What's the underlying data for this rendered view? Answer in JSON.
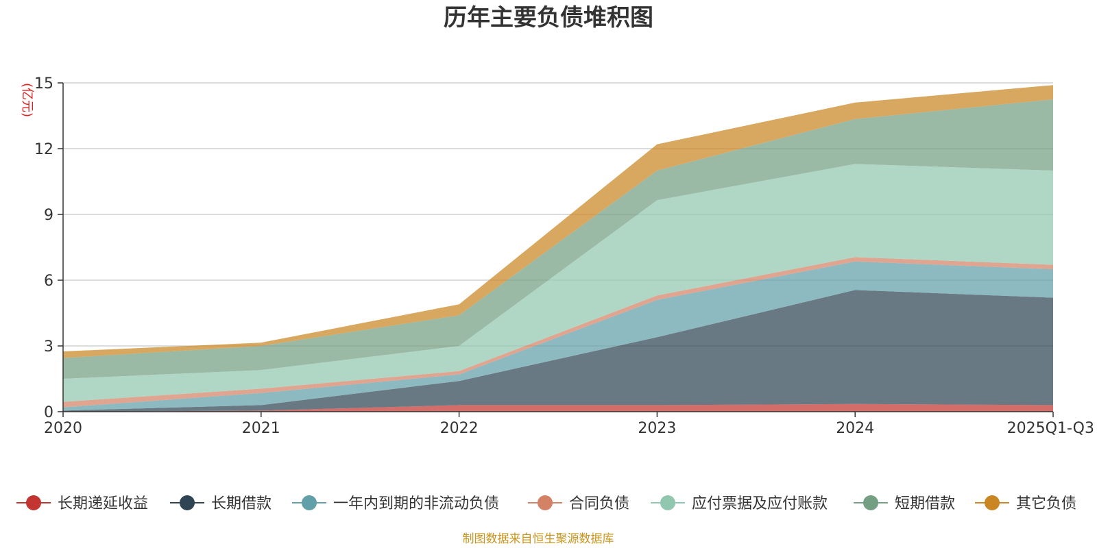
{
  "chart_data": {
    "type": "area",
    "stacked": true,
    "title": "历年主要负债堆积图",
    "unit_label": "(亿元)",
    "categories": [
      "2020",
      "2021",
      "2022",
      "2023",
      "2024",
      "2025Q1-Q3"
    ],
    "ylim": [
      0,
      15
    ],
    "y_ticks": [
      "0",
      "3",
      "6",
      "9",
      "12",
      "15"
    ],
    "grid": true,
    "legend_position": "bottom",
    "series": [
      {
        "name": "长期递延收益",
        "color": "#c23531",
        "values": [
          0.0,
          0.05,
          0.3,
          0.3,
          0.35,
          0.3
        ]
      },
      {
        "name": "长期借款",
        "color": "#2f4554",
        "values": [
          0.05,
          0.25,
          1.1,
          3.1,
          5.2,
          4.9
        ]
      },
      {
        "name": "一年内到期的非流动负债",
        "color": "#61a0a8",
        "values": [
          0.15,
          0.55,
          0.3,
          1.7,
          1.3,
          1.3
        ]
      },
      {
        "name": "合同负债",
        "color": "#d48265",
        "values": [
          0.25,
          0.2,
          0.15,
          0.2,
          0.2,
          0.2
        ]
      },
      {
        "name": "应付票据及应付账款",
        "color": "#91c7ae",
        "values": [
          1.05,
          0.85,
          1.15,
          4.35,
          4.25,
          4.3
        ]
      },
      {
        "name": "短期借款",
        "color": "#749f83",
        "values": [
          0.95,
          1.1,
          1.4,
          1.35,
          2.05,
          3.25
        ]
      },
      {
        "name": "其它负债",
        "color": "#ca8622",
        "values": [
          0.3,
          0.15,
          0.5,
          1.2,
          0.75,
          0.65
        ]
      }
    ]
  },
  "footer": {
    "source": "制图数据来自恒生聚源数据库"
  }
}
